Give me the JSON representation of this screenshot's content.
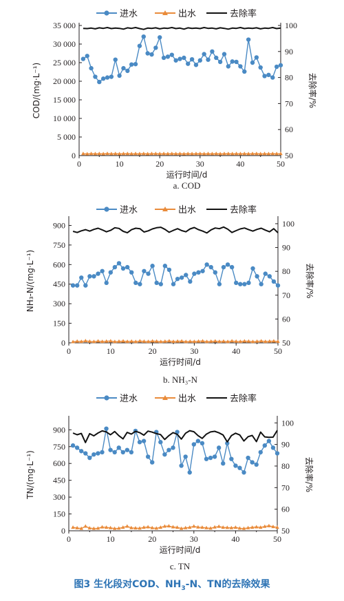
{
  "caption": {
    "prefix": "图3",
    "a": "生化段对COD、NH",
    "sub": "3",
    "b": "-N、TN的去除效果"
  },
  "legend": {
    "influent": "进水",
    "effluent": "出水",
    "removal": "去除率"
  },
  "colors": {
    "influent": "#4a8ac4",
    "effluent": "#e98b3a",
    "removal": "#111111",
    "axis": "#231f20",
    "caption": "#2e74b5"
  },
  "chart_data": [
    {
      "type": "line",
      "subcaption": "a. COD",
      "xlabel": "运行时间/d",
      "ylabel": "COD/(mg·L⁻¹)",
      "y2label": "去除率/%",
      "xlim": [
        0,
        50
      ],
      "xticks": [
        0,
        10,
        20,
        30,
        40,
        50
      ],
      "ylim": [
        0,
        35000
      ],
      "yticks": [
        0,
        5000,
        10000,
        15000,
        20000,
        25000,
        30000,
        35000
      ],
      "yticklabels": [
        "0",
        "5 000",
        "10 000",
        "15 000",
        "20 000",
        "25 000",
        "30 000",
        "35 000"
      ],
      "y2lim": [
        50,
        100
      ],
      "y2ticks": [
        50,
        60,
        70,
        80,
        90,
        100
      ],
      "series": [
        {
          "name": "进水",
          "axis": "left",
          "marker": "circle",
          "values": [
            26000,
            26800,
            23500,
            21200,
            19800,
            20700,
            21000,
            21200,
            25800,
            21500,
            23500,
            22800,
            24500,
            24600,
            29500,
            32000,
            27500,
            27200,
            29000,
            31800,
            26300,
            26600,
            27100,
            25600,
            26000,
            26300,
            24700,
            25900,
            24400,
            25600,
            27300,
            25800,
            28000,
            26300,
            25200,
            27300,
            24000,
            25300,
            25200,
            24000,
            22600,
            31200,
            25000,
            26400,
            23700,
            21400,
            21700,
            21000,
            23900,
            24300
          ]
        },
        {
          "name": "出水",
          "axis": "left",
          "marker": "triangle",
          "values": [
            500,
            450,
            520,
            480,
            500,
            470,
            530,
            490,
            510,
            460,
            500,
            520,
            480,
            500,
            490,
            510,
            470,
            500,
            520,
            480,
            500,
            490,
            510,
            480,
            500,
            470,
            520,
            490,
            500,
            510,
            480,
            500,
            490,
            520,
            470,
            500,
            510,
            480,
            500,
            490,
            520,
            480,
            500,
            510,
            470,
            500,
            490,
            510,
            480,
            500
          ]
        },
        {
          "name": "去除率",
          "axis": "right",
          "marker": "none",
          "values": [
            98.9,
            98.8,
            99.0,
            98.7,
            99.1,
            98.9,
            99.2,
            98.8,
            99.0,
            98.9,
            98.6,
            99.1,
            98.9,
            99.2,
            98.8,
            98.5,
            99.0,
            98.9,
            99.1,
            98.7,
            99.0,
            98.9,
            99.2,
            98.8,
            99.0,
            98.6,
            99.1,
            98.9,
            99.0,
            98.8,
            99.2,
            98.9,
            99.0,
            98.7,
            99.1,
            98.9,
            98.6,
            99.0,
            98.9,
            99.2,
            98.8,
            99.0,
            98.9,
            99.1,
            98.7,
            99.0,
            98.9,
            99.2,
            98.8,
            99.0
          ]
        }
      ]
    },
    {
      "type": "line",
      "subcaption": "b. NH₃-N",
      "xlabel": "运行时间/d",
      "ylabel": "NH₃-N/(mg·L⁻¹)",
      "y2label": "去除率/%",
      "xlim": [
        0,
        50
      ],
      "xticks": [
        0,
        10,
        20,
        30,
        40,
        50
      ],
      "ylim": [
        0,
        950
      ],
      "yticks": [
        0,
        150,
        300,
        450,
        600,
        750,
        900
      ],
      "yticklabels": [
        "0",
        "150",
        "300",
        "450",
        "600",
        "750",
        "900"
      ],
      "y2lim": [
        50,
        102
      ],
      "y2ticks": [
        50,
        60,
        70,
        80,
        90,
        100
      ],
      "series": [
        {
          "name": "进水",
          "axis": "left",
          "marker": "circle",
          "values": [
            440,
            440,
            500,
            440,
            510,
            510,
            530,
            550,
            460,
            540,
            580,
            610,
            570,
            580,
            540,
            460,
            450,
            550,
            530,
            590,
            460,
            450,
            590,
            560,
            450,
            490,
            500,
            520,
            470,
            530,
            540,
            550,
            600,
            580,
            540,
            450,
            580,
            600,
            580,
            460,
            450,
            450,
            460,
            570,
            510,
            450,
            530,
            510,
            470,
            440
          ]
        },
        {
          "name": "出水",
          "axis": "left",
          "marker": "triangle",
          "values": [
            8,
            12,
            10,
            15,
            11,
            9,
            13,
            10,
            12,
            14,
            9,
            11,
            13,
            10,
            12,
            9,
            14,
            11,
            10,
            13,
            12,
            9,
            11,
            14,
            10,
            12,
            13,
            9,
            11,
            10,
            12,
            14,
            9,
            11,
            13,
            10,
            12,
            9,
            14,
            11,
            10,
            13,
            12,
            9,
            11,
            14,
            10,
            12,
            13,
            10
          ]
        },
        {
          "name": "去除率",
          "axis": "right",
          "marker": "none",
          "values": [
            96.8,
            96.3,
            97.0,
            97.5,
            96.9,
            97.6,
            98.1,
            97.4,
            96.6,
            97.2,
            98.3,
            98.0,
            96.8,
            96.2,
            97.5,
            98.1,
            97.9,
            96.5,
            97.0,
            97.8,
            98.3,
            98.5,
            97.6,
            96.4,
            97.2,
            97.9,
            97.1,
            96.6,
            97.8,
            98.4,
            97.5,
            96.9,
            96.1,
            97.4,
            98.2,
            97.9,
            98.6,
            97.7,
            96.3,
            97.1,
            97.8,
            98.2,
            97.5,
            96.9,
            97.6,
            98.1,
            97.3,
            96.6,
            97.9,
            96.2
          ]
        }
      ]
    },
    {
      "type": "line",
      "subcaption": "c. TN",
      "xlabel": "运行时间/d",
      "ylabel": "TN/(mg·L⁻¹)",
      "y2label": "去除率/%",
      "xlim": [
        0,
        50
      ],
      "xticks": [
        0,
        10,
        20,
        30,
        40,
        50
      ],
      "ylim": [
        0,
        1000
      ],
      "yticks": [
        0,
        150,
        300,
        450,
        600,
        750,
        900
      ],
      "yticklabels": [
        "0",
        "150",
        "300",
        "450",
        "600",
        "750",
        "900"
      ],
      "y2lim": [
        50,
        102
      ],
      "y2ticks": [
        50,
        60,
        70,
        80,
        90,
        100
      ],
      "series": [
        {
          "name": "进水",
          "axis": "left",
          "marker": "circle",
          "values": [
            760,
            740,
            710,
            690,
            650,
            680,
            690,
            700,
            910,
            720,
            700,
            740,
            700,
            720,
            700,
            890,
            790,
            800,
            660,
            610,
            880,
            790,
            680,
            720,
            740,
            880,
            580,
            660,
            520,
            770,
            800,
            780,
            640,
            650,
            660,
            740,
            600,
            780,
            640,
            580,
            560,
            520,
            650,
            610,
            590,
            700,
            760,
            800,
            740,
            690
          ]
        },
        {
          "name": "出水",
          "axis": "left",
          "marker": "triangle",
          "values": [
            30,
            25,
            20,
            40,
            24,
            20,
            22,
            33,
            30,
            26,
            20,
            22,
            30,
            40,
            26,
            24,
            22,
            30,
            34,
            26,
            22,
            30,
            40,
            42,
            34,
            30,
            20,
            26,
            30,
            40,
            32,
            30,
            26,
            22,
            32,
            38,
            30,
            28,
            26,
            30,
            22,
            20,
            26,
            30,
            34,
            30,
            38,
            44,
            36,
            30
          ]
        },
        {
          "name": "去除率",
          "axis": "right",
          "marker": "none",
          "values": [
            95.3,
            94.5,
            95.1,
            90.9,
            95.0,
            94.0,
            95.3,
            96.3,
            95.8,
            94.5,
            96.0,
            94.1,
            92.6,
            95.6,
            94.8,
            96.1,
            95.5,
            94.3,
            96.2,
            95.7,
            95.0,
            94.6,
            92.3,
            94.1,
            95.5,
            94.7,
            92.5,
            95.2,
            96.4,
            95.9,
            94.1,
            92.8,
            94.8,
            95.8,
            96.1,
            95.4,
            94.4,
            91.2,
            94.1,
            95.2,
            94.4,
            91.6,
            93.6,
            94.2,
            91.3,
            95.7,
            93.5,
            93.3,
            93.4,
            96.5
          ]
        }
      ]
    }
  ]
}
